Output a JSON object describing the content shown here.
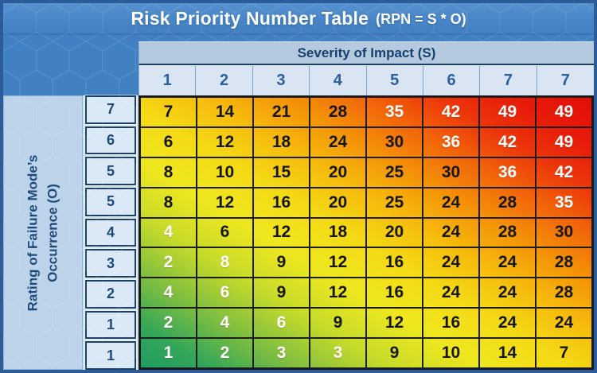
{
  "header": {
    "title": "Risk Priority Number Table",
    "formula": "(RPN = S * O)"
  },
  "axes": {
    "severity_label": "Severity of Impact (S)",
    "occurrence_label_line1": "Rating of Failure Mode’s",
    "occurrence_label_line2": "Occurrence (O)"
  },
  "chart_data": {
    "type": "heatmap",
    "title": "Risk Priority Number Table (RPN = S * O)",
    "xlabel": "Severity of Impact (S)",
    "ylabel": "Rating of Failure Mode’s Occurrence (O)",
    "x_ticks": [
      "1",
      "2",
      "3",
      "4",
      "5",
      "6",
      "7",
      "7"
    ],
    "y_ticks": [
      "7",
      "6",
      "5",
      "5",
      "4",
      "3",
      "2",
      "1",
      "1"
    ],
    "values": [
      [
        7,
        14,
        21,
        28,
        35,
        42,
        49,
        49
      ],
      [
        6,
        12,
        18,
        24,
        30,
        36,
        42,
        49
      ],
      [
        8,
        10,
        15,
        20,
        25,
        30,
        36,
        42
      ],
      [
        8,
        12,
        16,
        20,
        25,
        24,
        28,
        35
      ],
      [
        4,
        6,
        12,
        18,
        20,
        24,
        28,
        30
      ],
      [
        2,
        8,
        9,
        12,
        16,
        24,
        24,
        28
      ],
      [
        4,
        6,
        9,
        12,
        16,
        24,
        24,
        28
      ],
      [
        2,
        4,
        6,
        9,
        12,
        16,
        24,
        24
      ],
      [
        1,
        2,
        3,
        3,
        9,
        10,
        14,
        7
      ]
    ],
    "white_text": [
      [
        0,
        0,
        0,
        0,
        1,
        1,
        1,
        1
      ],
      [
        0,
        0,
        0,
        0,
        0,
        1,
        1,
        1
      ],
      [
        0,
        0,
        0,
        0,
        0,
        0,
        1,
        1
      ],
      [
        0,
        0,
        0,
        0,
        0,
        0,
        0,
        1
      ],
      [
        1,
        0,
        0,
        0,
        0,
        0,
        0,
        0
      ],
      [
        1,
        1,
        0,
        0,
        0,
        0,
        0,
        0
      ],
      [
        1,
        1,
        0,
        0,
        0,
        0,
        0,
        0
      ],
      [
        1,
        1,
        1,
        0,
        0,
        0,
        0,
        0
      ],
      [
        1,
        1,
        1,
        1,
        0,
        0,
        0,
        0
      ]
    ],
    "legend_position": "none",
    "grid": true,
    "color_scale": {
      "low_green": "#1f9c62",
      "mid_yellow": "#f2e71e",
      "high_orange": "#f49708",
      "high_red": "#e40e07"
    }
  },
  "colors": {
    "backdrop_blue": "#4181c2",
    "frame_border": "#2b5c99",
    "title_text": "#ffffff",
    "severity_band_bg": "#b5cadf",
    "scale_row_bg": "#d9e5f2",
    "label_column_bg": "#bdd3ea",
    "occurrence_box_bg": "#dbe9f7",
    "header_text": "#16406e",
    "cell_border": "#1d1d1d"
  }
}
